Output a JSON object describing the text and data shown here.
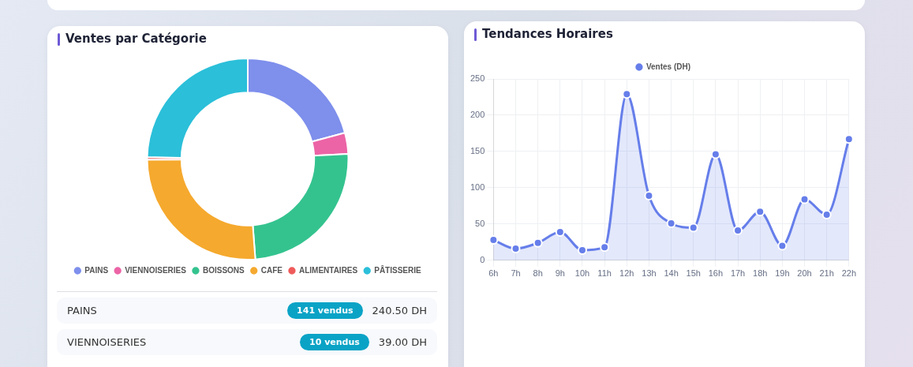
{
  "chart_data": [
    {
      "type": "donut",
      "title": "Ventes par Catégorie",
      "categories": [
        "PAINS",
        "VIENNOISERIES",
        "BOISSONS",
        "CAFE",
        "ALIMENTAIRES",
        "PÂTISSERIE"
      ],
      "values": [
        20.8,
        3.4,
        24.6,
        26.1,
        0.4,
        24.7
      ],
      "colors": [
        "#7e8fec",
        "#ec64a6",
        "#34c38f",
        "#f5a92e",
        "#ef5b5b",
        "#2bbfd9"
      ],
      "legend": "bottom"
    },
    {
      "type": "area",
      "title": "Tendances Horaires",
      "categories": [
        "6h",
        "7h",
        "8h",
        "9h",
        "10h",
        "11h",
        "12h",
        "13h",
        "14h",
        "15h",
        "16h",
        "17h",
        "18h",
        "19h",
        "20h",
        "21h",
        "22h"
      ],
      "series": [
        {
          "name": "Ventes (DH)",
          "color": "#667eea",
          "values": [
            28,
            16,
            24,
            39,
            14,
            18,
            229,
            89,
            51,
            45,
            146,
            41,
            67,
            20,
            84,
            63,
            167
          ]
        }
      ],
      "ylim": [
        0,
        250
      ],
      "yticks": [
        0,
        50,
        100,
        150,
        200,
        250
      ],
      "grid": true,
      "legend": "top",
      "marker": "circle"
    },
    {
      "type": "other",
      "annotations": [
        "PAINS",
        "141 vendus",
        "240.50 DH",
        "VIENNOISERIES",
        "10 vendus",
        "39.00 DH"
      ]
    }
  ]
}
